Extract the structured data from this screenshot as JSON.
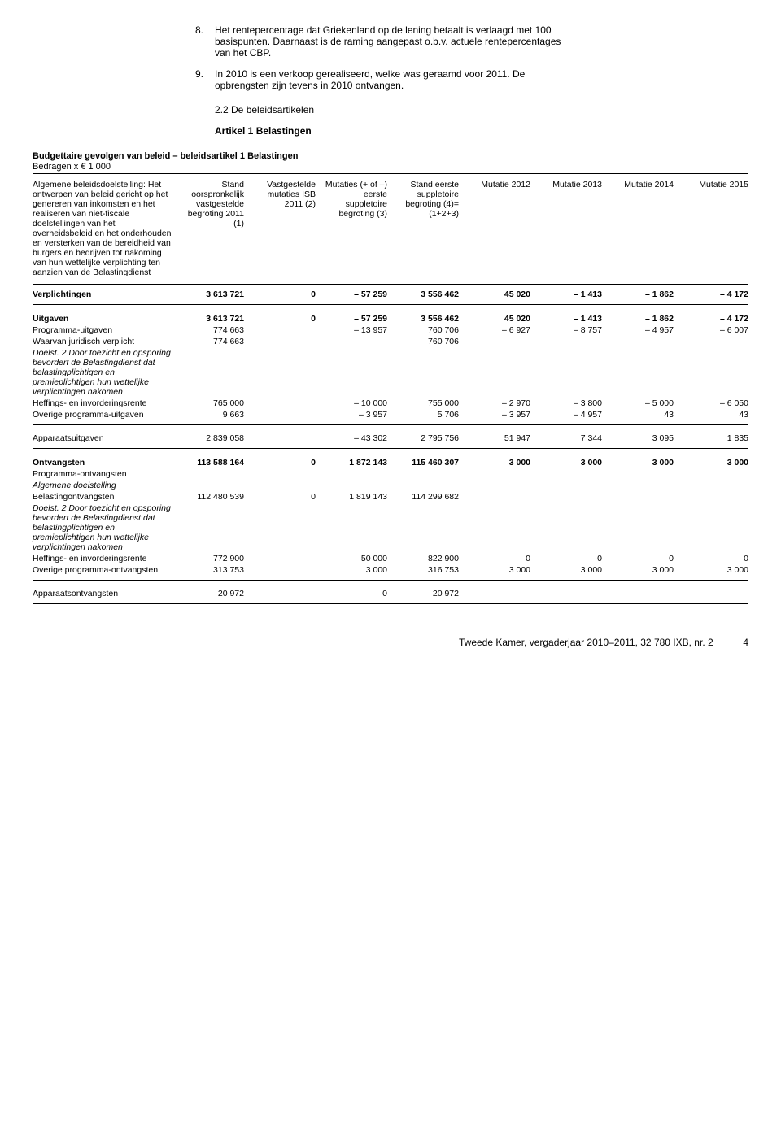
{
  "list": {
    "item8_num": "8.",
    "item8": "Het rentepercentage dat Griekenland op de lening betaalt is verlaagd met 100 basispunten. Daarnaast is de raming aangepast o.b.v. actuele rentepercentages van het CBP.",
    "item9_num": "9.",
    "item9": "In 2010 is een verkoop gerealiseerd, welke was geraamd voor 2011. De opbrengsten zijn tevens in 2010 ontvangen."
  },
  "section_heading": "2.2 De beleidsartikelen",
  "article_heading": "Artikel 1 Belastingen",
  "table_title": "Budgettaire gevolgen van beleid – beleidsartikel 1 Belastingen",
  "table_subtitle": "Bedragen x € 1 000",
  "headers": {
    "desc": "Algemene beleidsdoelstelling: Het ontwerpen van beleid gericht op het genereren van inkomsten en het realiseren van niet-fiscale doelstellingen van het overheidsbeleid en het onderhouden en versterken van de bereidheid van burgers en bedrijven tot nakoming van hun wettelijke verplichting ten aanzien van de Belastingdienst",
    "c1": "Stand oorspronkelijk vastgestelde begroting 2011 (1)",
    "c2": "Vastgestelde mutaties ISB 2011 (2)",
    "c3": "Mutaties (+ of –) eerste suppletoire begroting (3)",
    "c4": "Stand eerste suppletoire begroting (4)=(1+2+3)",
    "c5": "Mutatie 2012",
    "c6": "Mutatie 2013",
    "c7": "Mutatie 2014",
    "c8": "Mutatie 2015"
  },
  "rows": {
    "verplichtingen": {
      "label": "Verplichtingen",
      "c1": "3 613 721",
      "c2": "0",
      "c3": "– 57 259",
      "c4": "3 556 462",
      "c5": "45 020",
      "c6": "– 1 413",
      "c7": "– 1 862",
      "c8": "– 4 172"
    },
    "uitgaven": {
      "label": "Uitgaven",
      "c1": "3 613 721",
      "c2": "0",
      "c3": "– 57 259",
      "c4": "3 556 462",
      "c5": "45 020",
      "c6": "– 1 413",
      "c7": "– 1 862",
      "c8": "– 4 172"
    },
    "prog_uitgaven": {
      "label": "Programma-uitgaven",
      "c1": "774 663",
      "c3": "– 13 957",
      "c4": "760 706",
      "c5": "– 6 927",
      "c6": "– 8 757",
      "c7": "– 4 957",
      "c8": "– 6 007"
    },
    "waarvan": {
      "label": "Waarvan juridisch verplicht",
      "c1": "774 663",
      "c4": "760 706"
    },
    "doelst2a": {
      "label": "Doelst. 2 Door toezicht en opsporing bevordert de Belastingdienst dat belastingplichtigen en premieplichtigen hun wettelijke verplichtingen nakomen"
    },
    "heffings1": {
      "label": "Heffings- en invorderingsrente",
      "c1": "765 000",
      "c3": "– 10 000",
      "c4": "755 000",
      "c5": "– 2 970",
      "c6": "– 3 800",
      "c7": "– 5 000",
      "c8": "– 6 050"
    },
    "overige_uitg": {
      "label": "Overige programma-uitgaven",
      "c1": "9 663",
      "c3": "– 3 957",
      "c4": "5 706",
      "c5": "– 3 957",
      "c6": "– 4 957",
      "c7": "43",
      "c8": "43"
    },
    "apparaat_uitg": {
      "label": "Apparaatsuitgaven",
      "c1": "2 839 058",
      "c3": "– 43 302",
      "c4": "2 795 756",
      "c5": "51 947",
      "c6": "7 344",
      "c7": "3 095",
      "c8": "1 835"
    },
    "ontvangsten": {
      "label": "Ontvangsten",
      "c1": "113 588 164",
      "c2": "0",
      "c3": "1 872 143",
      "c4": "115 460 307",
      "c5": "3 000",
      "c6": "3 000",
      "c7": "3 000",
      "c8": "3 000"
    },
    "prog_ontv": {
      "label": "Programma-ontvangsten"
    },
    "alg_doelst": {
      "label": "Algemene doelstelling"
    },
    "belasting_ontv": {
      "label": "Belastingontvangsten",
      "c1": "112 480 539",
      "c2": "0",
      "c3": "1 819 143",
      "c4": "114 299 682"
    },
    "doelst2b": {
      "label": "Doelst. 2 Door toezicht en opsporing bevordert de Belastingdienst dat belastingplichtigen en premieplichtigen hun wettelijke verplichtingen nakomen"
    },
    "heffings2": {
      "label": "Heffings- en invorderingsrente",
      "c1": "772 900",
      "c3": "50 000",
      "c4": "822 900",
      "c5": "0",
      "c6": "0",
      "c7": "0",
      "c8": "0"
    },
    "overige_ontv": {
      "label": "Overige programma-ontvangsten",
      "c1": "313 753",
      "c3": "3 000",
      "c4": "316 753",
      "c5": "3 000",
      "c6": "3 000",
      "c7": "3 000",
      "c8": "3 000"
    },
    "apparaat_ontv": {
      "label": "Apparaatsontvangsten",
      "c1": "20 972",
      "c3": "0",
      "c4": "20 972"
    }
  },
  "footer": {
    "text": "Tweede Kamer, vergaderjaar 2010–2011, 32 780 IXB, nr. 2",
    "page": "4"
  }
}
